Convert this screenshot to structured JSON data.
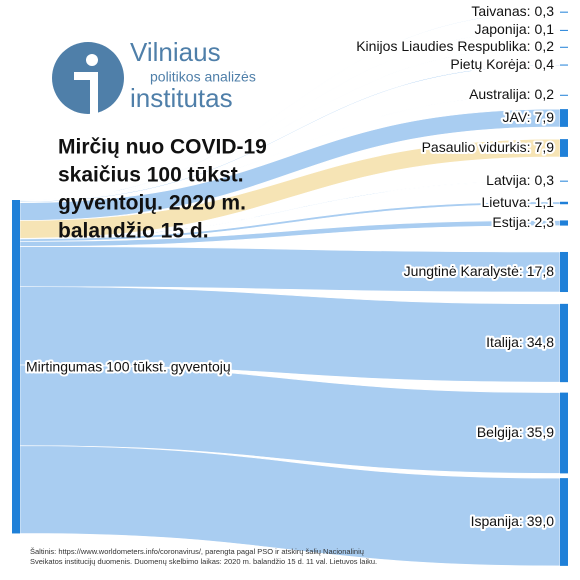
{
  "chart_data": {
    "type": "sankey",
    "title": [
      "Mirčių nuo COVID-19",
      "skaičius 100 tūkst.",
      "gyventojų. 2020 m.",
      "balandžio 15 d."
    ],
    "logo": [
      "Vilniaus",
      "politikos analizės",
      "institutas"
    ],
    "source": "Mirtingumas 100 tūkst. gyventojų",
    "categories": [
      "Taivanas:",
      "Japonija:",
      "Kinijos Liaudies Respublika:",
      "Pietų Korėja:",
      "Australija:",
      "JAV:",
      "Pasaulio vidurkis:",
      "Latvija:",
      "Lietuva:",
      "Estija:",
      "Jungtinė Karalystė:",
      "Italija:",
      "Belgija:",
      "Ispanija:"
    ],
    "values": [
      0.3,
      0.1,
      0.2,
      0.4,
      0.2,
      7.9,
      7.9,
      0.3,
      1.1,
      2.3,
      17.8,
      34.8,
      35.9,
      39.0
    ],
    "value_labels": [
      "0,3",
      "0,1",
      "0,2",
      "0,4",
      "0,2",
      "7,9",
      "7,9",
      "0,3",
      "1,1",
      "2,3",
      "17,8",
      "34,8",
      "35,9",
      "39,0"
    ],
    "colors": [
      "#a9cdf1",
      "#a9cdf1",
      "#a9cdf1",
      "#a9cdf1",
      "#a9cdf1",
      "#a9cdf1",
      "#f6e4b5",
      "#a9cdf1",
      "#a9cdf1",
      "#a9cdf1",
      "#a9cdf1",
      "#a9cdf1",
      "#a9cdf1",
      "#a9cdf1"
    ],
    "node_color": "#1f80d8",
    "note": [
      "Šaltinis: https://www.worldometers.info/coronavirus/, parengta pagal PSO ir atskirų šalių Nacionalinių",
      "Sveikatos institucijų duomenis. Duomenų skelbimo laikas: 2020 m. balandžio 15 d.  11 val. Lietuvos laiku."
    ]
  }
}
